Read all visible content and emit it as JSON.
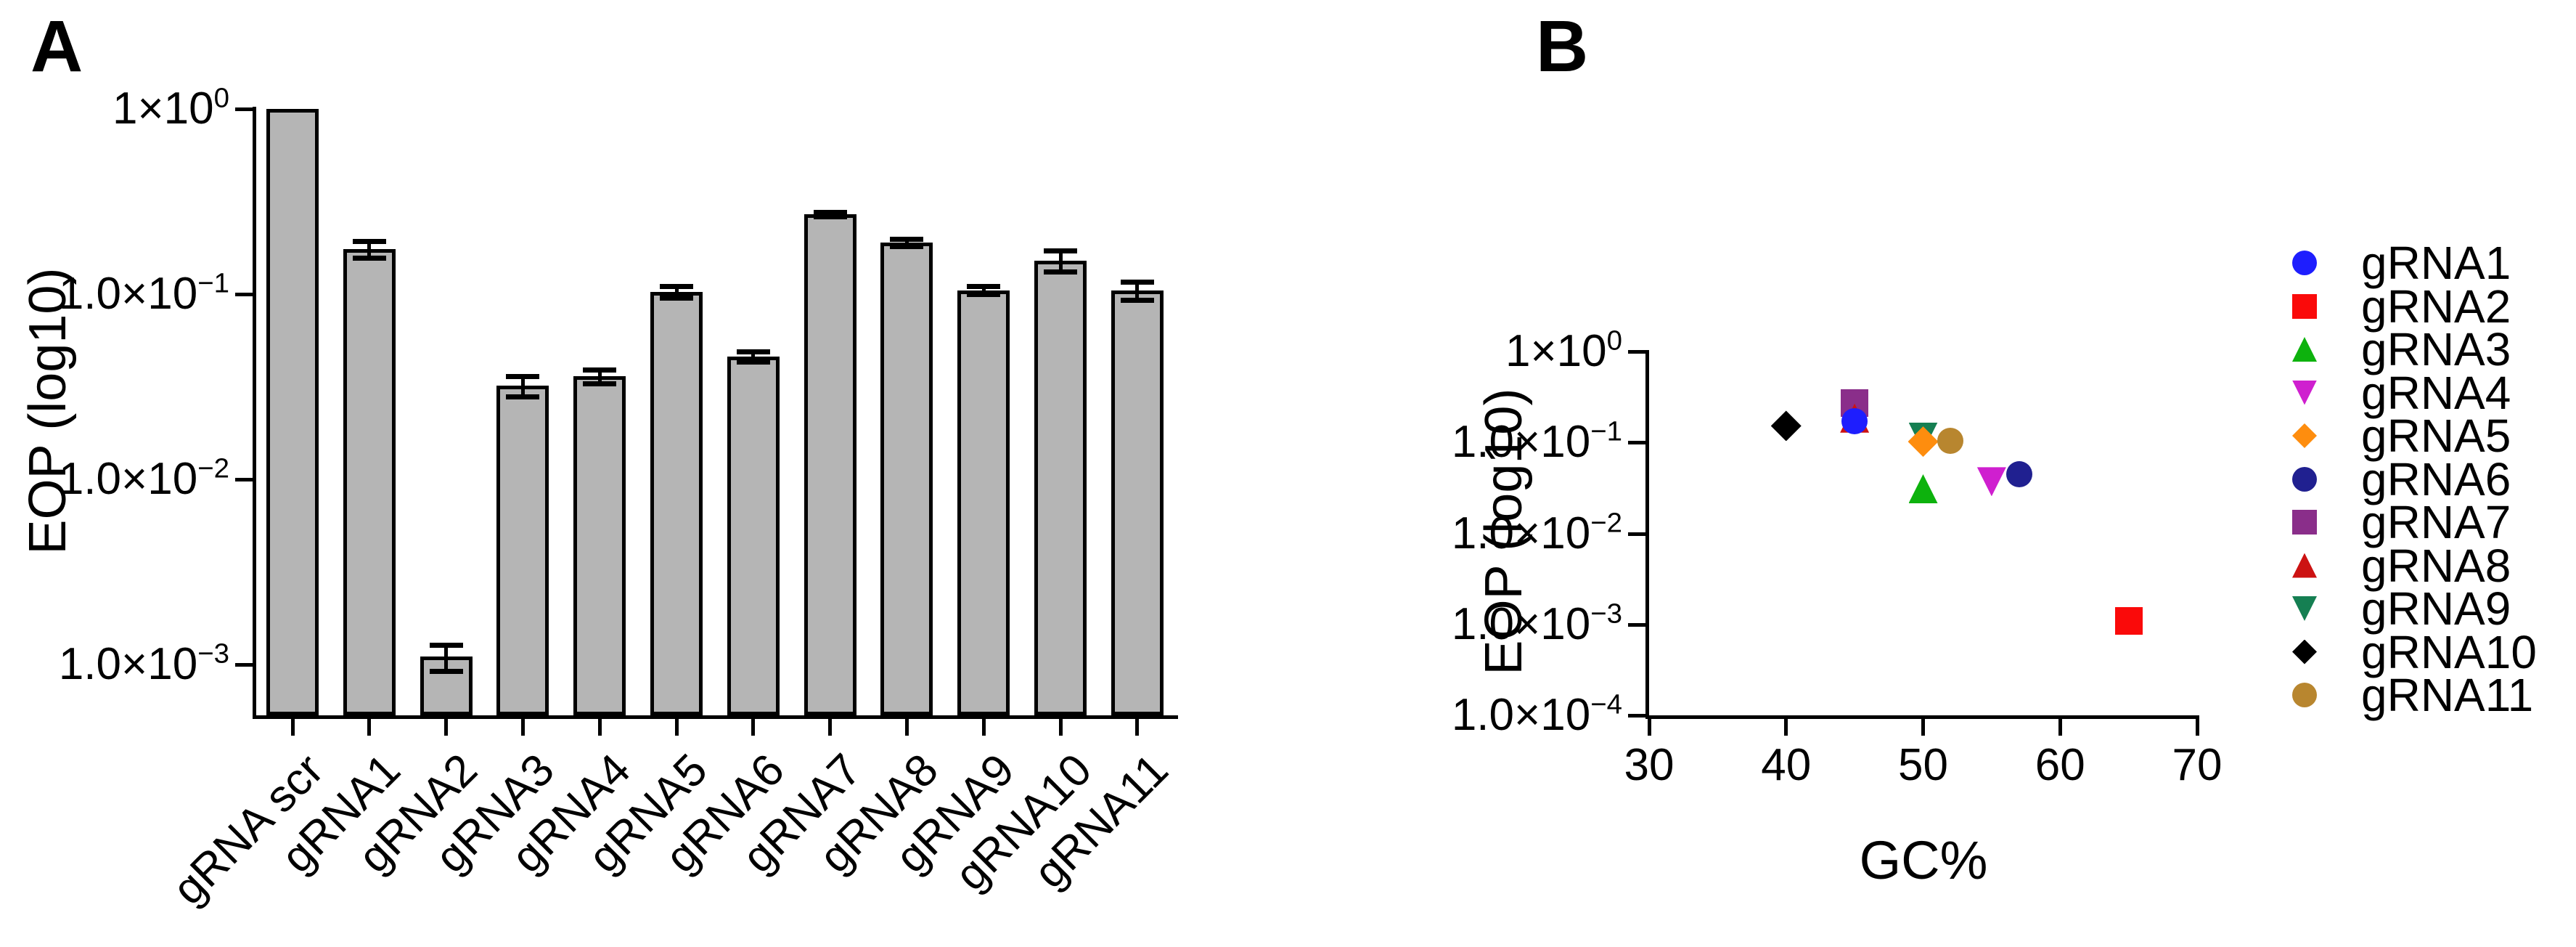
{
  "figure": {
    "background": "#ffffff",
    "panels": [
      {
        "label": "A"
      },
      {
        "label": "B"
      }
    ]
  },
  "chart_data": [
    {
      "type": "bar",
      "panel": "A",
      "title": "",
      "xlabel": "",
      "ylabel": "EOP (log10)",
      "yscale": "log",
      "ylim": [
        0.00053,
        1.0
      ],
      "grid": false,
      "bar_fill": "#b5b5b5",
      "bar_stroke": "#000000",
      "categories": [
        "gRNA scr",
        "gRNA1",
        "gRNA2",
        "gRNA3",
        "gRNA4",
        "gRNA5",
        "gRNA6",
        "gRNA7",
        "gRNA8",
        "gRNA9",
        "gRNA10",
        "gRNA11"
      ],
      "values": [
        1.0,
        0.175,
        0.0011,
        0.032,
        0.036,
        0.103,
        0.046,
        0.27,
        0.19,
        0.105,
        0.152,
        0.105
      ],
      "errors": [
        0,
        0.018,
        0.00018,
        0.004,
        0.003,
        0.007,
        0.003,
        0.008,
        0.008,
        0.005,
        0.02,
        0.012
      ],
      "yticks": [
        {
          "base": "1×10",
          "exp": "0",
          "value": 1
        },
        {
          "base": "1.0×10",
          "exp": "-1",
          "value": 0.1
        },
        {
          "base": "1.0×10",
          "exp": "-2",
          "value": 0.01
        },
        {
          "base": "1.0×10",
          "exp": "-3",
          "value": 0.001
        }
      ]
    },
    {
      "type": "scatter",
      "panel": "B",
      "title": "",
      "xlabel": "GC%",
      "ylabel": "EOP (log10)",
      "yscale": "log",
      "xlim": [
        30,
        70
      ],
      "ylim": [
        0.0001,
        1.0
      ],
      "grid": false,
      "legend_position": "right",
      "xticks": [
        30,
        40,
        50,
        60,
        70
      ],
      "yticks": [
        {
          "base": "1×10",
          "exp": "0",
          "value": 1
        },
        {
          "base": "1.0×10",
          "exp": "-1",
          "value": 0.1
        },
        {
          "base": "1.0×10",
          "exp": "-2",
          "value": 0.01
        },
        {
          "base": "1.0×10",
          "exp": "-3",
          "value": 0.001
        },
        {
          "base": "1.0×10",
          "exp": "-4",
          "value": 0.0001
        }
      ],
      "series": [
        {
          "name": "gRNA1",
          "marker": "circle",
          "color": "#1e1efe",
          "x": 45,
          "y": 0.17
        },
        {
          "name": "gRNA2",
          "marker": "square",
          "color": "#fa0a0a",
          "x": 65,
          "y": 0.0011
        },
        {
          "name": "gRNA3",
          "marker": "triangle-up",
          "color": "#0db20d",
          "x": 50,
          "y": 0.031
        },
        {
          "name": "gRNA4",
          "marker": "triangle-down",
          "color": "#cf1fcf",
          "x": 55,
          "y": 0.037
        },
        {
          "name": "gRNA5",
          "marker": "diamond",
          "color": "#fe8d0e",
          "x": 50,
          "y": 0.102
        },
        {
          "name": "gRNA6",
          "marker": "circle",
          "color": "#202090",
          "x": 57,
          "y": 0.045
        },
        {
          "name": "gRNA7",
          "marker": "square",
          "color": "#8a2e8a",
          "x": 45,
          "y": 0.27
        },
        {
          "name": "gRNA8",
          "marker": "triangle-up",
          "color": "#cc1212",
          "x": 45,
          "y": 0.185
        },
        {
          "name": "gRNA9",
          "marker": "triangle-down",
          "color": "#157f52",
          "x": 50,
          "y": 0.115
        },
        {
          "name": "gRNA10",
          "marker": "diamond",
          "color": "#000000",
          "x": 40,
          "y": 0.152
        },
        {
          "name": "gRNA11",
          "marker": "circle",
          "color": "#b8862f",
          "x": 52,
          "y": 0.105
        }
      ],
      "z_order": [
        "gRNA7",
        "gRNA8",
        "gRNA1",
        "gRNA9",
        "gRNA5",
        "gRNA10",
        "gRNA11",
        "gRNA3",
        "gRNA4",
        "gRNA6",
        "gRNA2"
      ]
    }
  ]
}
